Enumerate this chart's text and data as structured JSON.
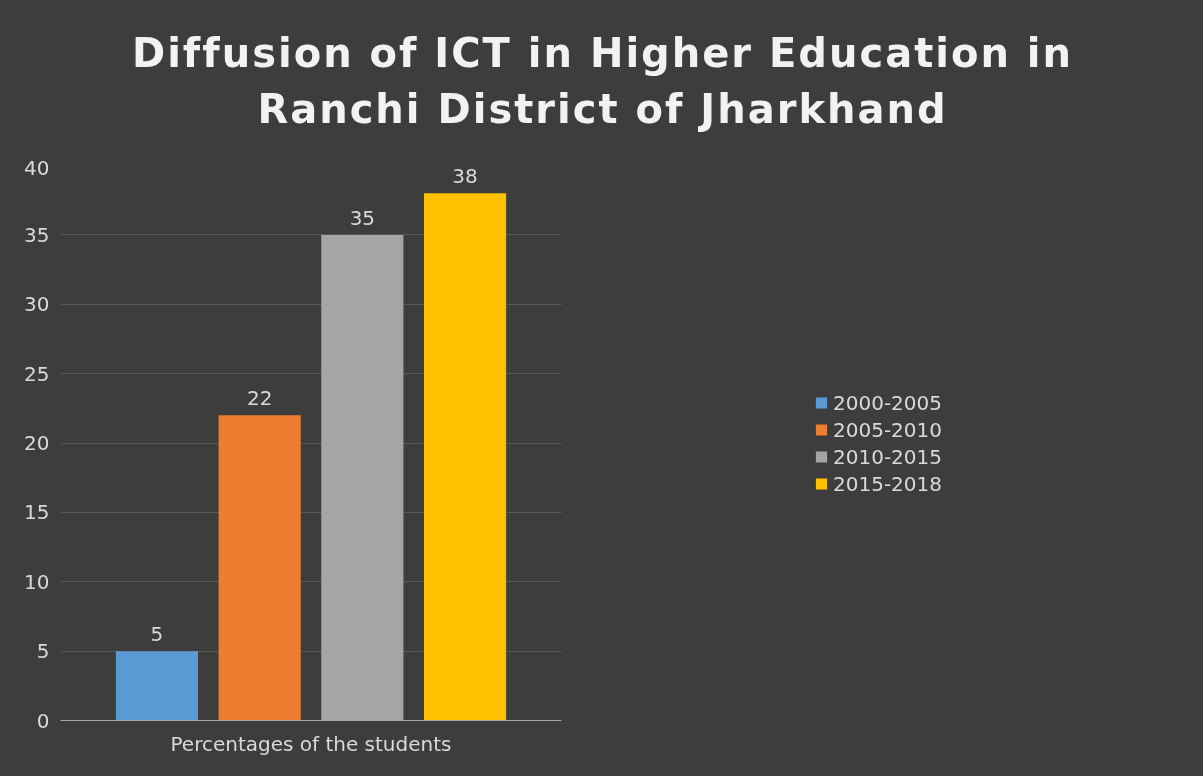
{
  "chart_data": {
    "type": "bar",
    "title": "Diffusion of ICT in Higher Education in Ranchi District of Jharkhand",
    "categories": [
      "Percentages of the students"
    ],
    "series": [
      {
        "name": "2000-2005",
        "color": "#5b9bd5",
        "values": [
          5
        ]
      },
      {
        "name": "2005-2010",
        "color": "#ed7d31",
        "values": [
          22
        ]
      },
      {
        "name": "2010-2015",
        "color": "#a5a5a5",
        "values": [
          35
        ]
      },
      {
        "name": "2015-2018",
        "color": "#ffc000",
        "values": [
          38
        ]
      }
    ],
    "ylim": [
      0,
      40
    ],
    "yticks": [
      0,
      5,
      10,
      15,
      20,
      25,
      30,
      35,
      40
    ],
    "grid": "y",
    "legend": "right",
    "data_labels": true
  }
}
